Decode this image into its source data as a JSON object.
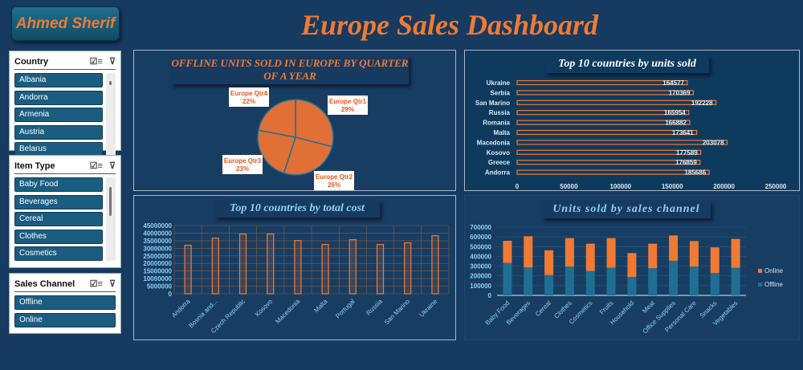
{
  "header": {
    "author": "Ahmed Sherif",
    "title": "Europe Sales Dashboard"
  },
  "slicers": {
    "country": {
      "title": "Country",
      "items": [
        "Albania",
        "Andorra",
        "Armenia",
        "Austria",
        "Belarus"
      ]
    },
    "item_type": {
      "title": "Item Type",
      "items": [
        "Baby Food",
        "Beverages",
        "Cereal",
        "Clothes",
        "Cosmetics"
      ]
    },
    "sales_channel": {
      "title": "Sales Channel",
      "items": [
        "Offline",
        "Online"
      ]
    },
    "icons": [
      "multi-select-icon",
      "clear-filter-icon"
    ]
  },
  "colors": {
    "background": "#173a60",
    "accent": "#f07a33",
    "offline": "#1f6f93",
    "online": "#f07a33"
  },
  "chart_data": [
    {
      "type": "pie",
      "title": "OFFLINE UNITS SOLD IN EUROPE BY QUARTER OF A YEAR",
      "categories": [
        "Europe Qtr1",
        "Europe Qtr2",
        "Europe Qtr3",
        "Europe Qtr4"
      ],
      "values": [
        29,
        26,
        23,
        22
      ],
      "labels": [
        "29%",
        "26%",
        "23%",
        "22%"
      ]
    },
    {
      "type": "bar",
      "orientation": "horizontal",
      "title": "Top 10 countries by units sold",
      "categories": [
        "Ukraine",
        "Serbia",
        "San Marino",
        "Russia",
        "Romania",
        "Malta",
        "Macedonia",
        "Kosovo",
        "Greece",
        "Andorra"
      ],
      "values": [
        164577,
        170369,
        192228,
        165954,
        166882,
        173641,
        203078,
        177589,
        176859,
        185686
      ],
      "xlim": [
        0,
        250000
      ],
      "xticks": [
        "0",
        "50000",
        "100000",
        "150000",
        "200000",
        "250000"
      ]
    },
    {
      "type": "bar",
      "title": "Top 10 countries by total cost",
      "categories": [
        "Andorra",
        "Bosnia and...",
        "Czech Republic",
        "Kosovo",
        "Macedonia",
        "Malta",
        "Portugal",
        "Russia",
        "San Marino",
        "Ukraine"
      ],
      "values": [
        32000000,
        36700000,
        39400000,
        39400000,
        35100000,
        32500000,
        35700000,
        32500000,
        33600000,
        38300000
      ],
      "ylim": [
        0,
        45000000
      ],
      "grid": true,
      "yticks": [
        "0",
        "5000000",
        "10000000",
        "15000000",
        "20000000",
        "25000000",
        "30000000",
        "35000000",
        "40000000",
        "45000000"
      ]
    },
    {
      "type": "bar",
      "stacked": true,
      "title": "Units sold by sales channel",
      "categories": [
        "Baby Food",
        "Beverages",
        "Cereal",
        "Clothes",
        "Cosmetics",
        "Fruits",
        "Household",
        "Meat",
        "Office Supplies",
        "Personal Care",
        "Snacks",
        "Vegetables"
      ],
      "series": [
        {
          "name": "Offline",
          "values": [
            333000,
            287000,
            208000,
            295000,
            251000,
            284000,
            189000,
            279000,
            355000,
            295000,
            230000,
            284000
          ]
        },
        {
          "name": "Online",
          "values": [
            227000,
            320000,
            254000,
            292000,
            279000,
            303000,
            245000,
            251000,
            260000,
            262000,
            262000,
            295000
          ]
        }
      ],
      "ylim": [
        0,
        700000
      ],
      "grid": true,
      "legend": "right",
      "yticks": [
        "0",
        "100000",
        "200000",
        "300000",
        "400000",
        "500000",
        "600000",
        "700000"
      ]
    }
  ]
}
